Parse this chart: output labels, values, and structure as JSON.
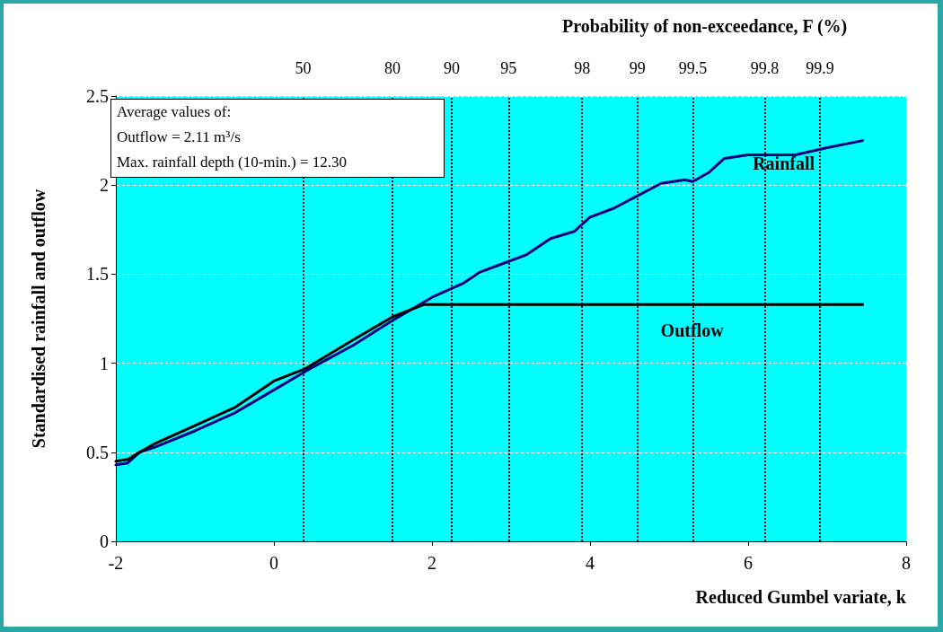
{
  "chart_data": {
    "type": "line",
    "xlabel": "Reduced Gumbel variate, k",
    "ylabel": "Standardised rainfall and outflow",
    "x2label": "Probability of non-exceedance, F (%)",
    "annotations": [
      "Average values of:",
      "Outflow = 2.11 m³/s",
      "Max. rainfall depth (10-min.) = 12.30",
      {
        "text": "50",
        "x": 0.37,
        "y": 2.5
      },
      {
        "text": "80",
        "x": 1.5,
        "y": 2.5
      },
      {
        "text": "90",
        "x": 2.25,
        "y": 2.5
      },
      {
        "text": "95",
        "x": 2.97,
        "y": 2.5
      },
      {
        "text": "98",
        "x": 3.9,
        "y": 2.5
      },
      {
        "text": "99",
        "x": 4.6,
        "y": 2.5
      },
      {
        "text": "99.5",
        "x": 5.3,
        "y": 2.5
      },
      {
        "text": "99.8",
        "x": 6.21,
        "y": 2.5
      },
      {
        "text": "99.9",
        "x": 6.91,
        "y": 2.5
      }
    ],
    "xlim": [
      -2,
      8
    ],
    "xticks": [
      -2,
      0,
      2,
      4,
      6,
      8
    ],
    "ylim": [
      0,
      2.5
    ],
    "yticks": [
      0,
      0.5,
      1,
      1.5,
      2,
      2.5
    ],
    "grid": "y",
    "marker": "none",
    "line_style": "solid",
    "ref_lines": [
      {
        "axis": "x",
        "value": 0.37,
        "line_style": "dotted"
      },
      {
        "axis": "x",
        "value": 1.5,
        "line_style": "dotted"
      },
      {
        "axis": "x",
        "value": 2.25,
        "line_style": "dotted"
      },
      {
        "axis": "x",
        "value": 2.97,
        "line_style": "dotted"
      },
      {
        "axis": "x",
        "value": 3.9,
        "line_style": "dotted"
      },
      {
        "axis": "x",
        "value": 4.6,
        "line_style": "dotted"
      },
      {
        "axis": "x",
        "value": 5.3,
        "line_style": "dotted"
      },
      {
        "axis": "x",
        "value": 6.21,
        "line_style": "dotted"
      },
      {
        "axis": "x",
        "value": 6.91,
        "line_style": "dotted"
      }
    ],
    "series": [
      {
        "name": "Rainfall",
        "color": "#000080",
        "x": [
          -2,
          -1.85,
          -1.7,
          -1.5,
          -1,
          -0.5,
          0,
          0.5,
          1,
          1.5,
          2,
          2.4,
          2.6,
          2.9,
          3.2,
          3.5,
          3.8,
          4,
          4.3,
          4.6,
          4.9,
          5.2,
          5.3,
          5.5,
          5.7,
          6,
          6.6,
          7,
          7.45
        ],
        "values": [
          0.43,
          0.44,
          0.5,
          0.53,
          0.62,
          0.72,
          0.85,
          0.98,
          1.1,
          1.24,
          1.37,
          1.45,
          1.51,
          1.56,
          1.61,
          1.7,
          1.74,
          1.82,
          1.87,
          1.94,
          2.01,
          2.03,
          2.02,
          2.07,
          2.15,
          2.17,
          2.17,
          2.21,
          2.25
        ]
      },
      {
        "name": "Outflow",
        "color": "#000000",
        "x": [
          -2,
          -1.85,
          -1.7,
          -1.5,
          -1,
          -0.5,
          0,
          0.4,
          1,
          1.5,
          1.9,
          7.45
        ],
        "values": [
          0.45,
          0.46,
          0.5,
          0.55,
          0.65,
          0.75,
          0.9,
          0.97,
          1.13,
          1.26,
          1.33,
          1.33
        ]
      }
    ]
  }
}
